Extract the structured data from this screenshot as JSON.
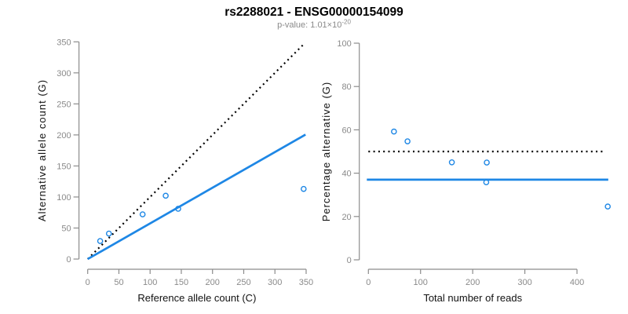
{
  "header": {
    "title": "rs2288021 - ENSG00000154099",
    "subtitle_prefix": "p-value: 1.01×10",
    "subtitle_exponent": "-20"
  },
  "colors": {
    "accent_blue": "#1E87E5",
    "dotted_black": "#000000",
    "axis_gray": "#8c8c8c",
    "tick_label_gray": "#8a8a8a",
    "title_black": "#000000",
    "subtitle_gray": "#8a8a8a",
    "background": "#ffffff"
  },
  "chart_data": [
    {
      "type": "scatter",
      "title": "",
      "xlabel": "Reference allele count (C)",
      "ylabel": "Alternative allele count (G)",
      "xlim": [
        0,
        350
      ],
      "ylim": [
        0,
        350
      ],
      "xticks": [
        0,
        50,
        100,
        150,
        200,
        250,
        300,
        350
      ],
      "yticks": [
        0,
        50,
        100,
        150,
        200,
        250,
        300,
        350
      ],
      "grid": false,
      "legend": "none",
      "marker": "open-circle",
      "points": [
        {
          "x": 20,
          "y": 29
        },
        {
          "x": 34,
          "y": 41
        },
        {
          "x": 88,
          "y": 72
        },
        {
          "x": 125,
          "y": 102
        },
        {
          "x": 145,
          "y": 81
        },
        {
          "x": 346,
          "y": 113
        }
      ],
      "lines": [
        {
          "name": "identity",
          "style": "dotted",
          "color": "#000000",
          "from": [
            0,
            0
          ],
          "to": [
            346,
            346
          ]
        },
        {
          "name": "fit",
          "style": "solid",
          "color": "#1E87E5",
          "from": [
            0,
            0
          ],
          "to": [
            349,
            200.5
          ]
        }
      ]
    },
    {
      "type": "scatter",
      "title": "",
      "xlabel": "Total number of reads",
      "ylabel": "Percentage alternative (G)",
      "xlim": [
        0,
        460
      ],
      "ylim": [
        0,
        100
      ],
      "xticks": [
        0,
        100,
        200,
        300,
        400
      ],
      "yticks": [
        0,
        20,
        40,
        60,
        80,
        100
      ],
      "grid": false,
      "legend": "none",
      "marker": "open-circle",
      "points": [
        {
          "x": 49,
          "y": 59.2
        },
        {
          "x": 75,
          "y": 54.7
        },
        {
          "x": 160,
          "y": 45.0
        },
        {
          "x": 227,
          "y": 44.9
        },
        {
          "x": 226,
          "y": 35.8
        },
        {
          "x": 459,
          "y": 24.6
        }
      ],
      "lines": [
        {
          "name": "expected-50pct",
          "style": "dotted",
          "color": "#000000",
          "from": [
            0,
            50
          ],
          "to": [
            450,
            50
          ]
        },
        {
          "name": "fitted-pct",
          "style": "solid",
          "color": "#1E87E5",
          "from": [
            -3,
            37
          ],
          "to": [
            460,
            37
          ]
        }
      ]
    }
  ]
}
